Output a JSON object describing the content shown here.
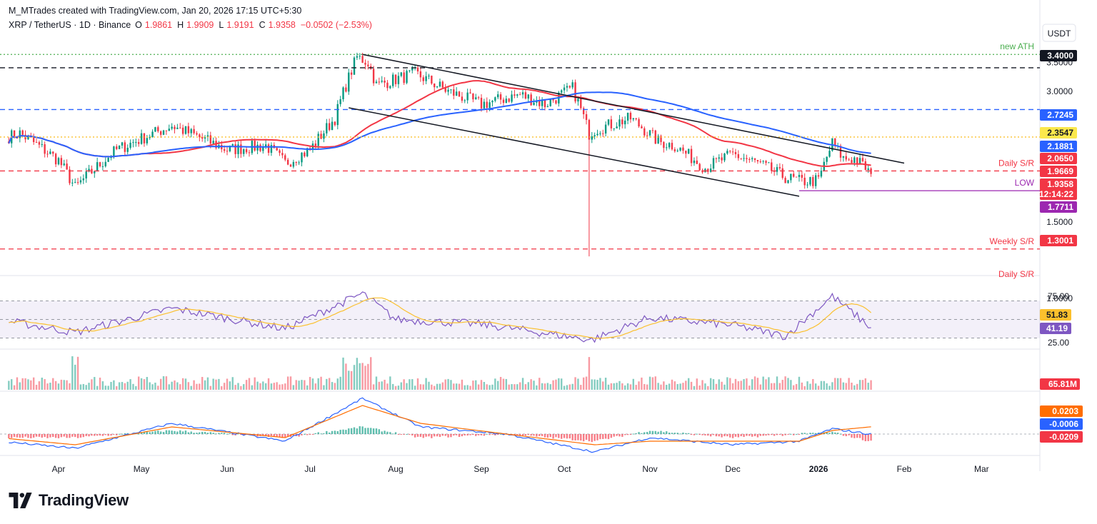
{
  "header": {
    "credit": "M_MTrades created with TradingView.com, Jan 20, 2026 17:15 UTC+5:30"
  },
  "symbol_line": {
    "symbol": "XRP / TetherUS · 1D · Binance",
    "open_label": "O",
    "open": "1.9861",
    "high_label": "H",
    "high": "1.9909",
    "low_label": "L",
    "low": "1.9191",
    "close_label": "C",
    "close": "1.9358",
    "change": "−0.0502 (−2.53%)"
  },
  "currency_button": "USDT",
  "brand": {
    "name": "TradingView"
  },
  "colors": {
    "up": "#089981",
    "down": "#f23645",
    "ma_red": "#f23645",
    "ma_blue": "#2962ff",
    "rsi_line": "#7e57c2",
    "rsi_ma": "#fbc02d",
    "macd_line": "#2962ff",
    "signal_line": "#ff6d00",
    "ath": "#4caf50",
    "low_line": "#9c27b0"
  },
  "chart_data": [
    {
      "type": "candlestick",
      "title": "XRP / TetherUS · 1D · Binance",
      "x_tick_labels": [
        "Apr",
        "May",
        "Jun",
        "Jul",
        "Aug",
        "Sep",
        "Oct",
        "Nov",
        "Dec",
        "2026",
        "Feb",
        "Mar"
      ],
      "y_tick_labels": [
        "3.5000",
        "3.0000",
        "1.5000",
        "1.0000"
      ],
      "y_scale": "log",
      "ylim": [
        0.95,
        3.75
      ],
      "ohlc_waypoints_x": [
        "Mar 10",
        "Mar 18",
        "Apr 1",
        "Apr 7",
        "Apr 22",
        "May 12",
        "Jun 1",
        "Jun 15",
        "Jun 22",
        "Jul 1",
        "Jul 10",
        "Jul 18",
        "Jul 22",
        "Jul 25",
        "Aug 8",
        "Aug 20",
        "Sep 1",
        "Sep 15",
        "Sep 24",
        "Oct 4",
        "Oct 10",
        "Oct 12",
        "Oct 25",
        "Nov 4",
        "Nov 10",
        "Nov 21",
        "Dec 1",
        "Dec 10",
        "Dec 20",
        "Dec 26",
        "Jan 1",
        "Jan 6",
        "Jan 10",
        "Jan 14",
        "Jan 18",
        "Jan 20"
      ],
      "close_waypoints": [
        2.32,
        2.4,
        2.08,
        1.8,
        2.2,
        2.5,
        2.2,
        2.25,
        2.05,
        2.2,
        2.6,
        3.6,
        3.5,
        3.1,
        3.3,
        3.0,
        2.8,
        2.95,
        2.8,
        3.05,
        2.4,
        2.45,
        2.6,
        2.3,
        2.25,
        2.0,
        2.15,
        2.05,
        1.9,
        1.86,
        1.87,
        2.28,
        2.1,
        2.1,
        2.0,
        1.9358
      ],
      "series": [
        {
          "name": "",
          "type": "moving-average",
          "color_key": "ma_red",
          "last_value": 2.065
        },
        {
          "name": "",
          "type": "moving-average",
          "color_key": "ma_blue",
          "last_value": 2.1881
        }
      ],
      "price_levels": [
        {
          "value": 3.4,
          "label": "3.4000",
          "style": "dashed",
          "color": "#131722",
          "text": ""
        },
        {
          "value": 3.65,
          "label": "",
          "style": "dotted",
          "color": "#4caf50",
          "text": "new ATH"
        },
        {
          "value": 2.7245,
          "label": "2.7245",
          "style": "dashed",
          "color": "#2962ff",
          "text": ""
        },
        {
          "value": 2.3547,
          "label": "2.3547",
          "style": "dotted",
          "color": "#fbc02d",
          "text": ""
        },
        {
          "value": 1.9669,
          "label": "1.9669",
          "style": "dashed",
          "color": "#f23645",
          "text": "Daily S/R"
        },
        {
          "value": 1.7711,
          "label": "1.7711",
          "style": "solid",
          "color": "#9c27b0",
          "text": "LOW"
        },
        {
          "value": 1.3001,
          "label": "1.3001",
          "style": "dashed",
          "color": "#f23645",
          "text": "Weekly S/R"
        }
      ],
      "channel": {
        "upper": [
          [
            "Jul 20",
            3.65
          ],
          [
            "Feb 1",
            2.05
          ]
        ],
        "lower": [
          [
            "Jul 15",
            2.75
          ],
          [
            "Dec 25",
            1.72
          ]
        ]
      },
      "price_labels": [
        {
          "text": "3.4000",
          "bg": "#131722",
          "fg": "#ffffff"
        },
        {
          "text": "2.7245",
          "bg": "#2962ff",
          "fg": "#ffffff"
        },
        {
          "text": "2.3547",
          "bg": "#fbe84c",
          "fg": "#131722"
        },
        {
          "text": "2.1881",
          "bg": "#2962ff",
          "fg": "#ffffff"
        },
        {
          "text": "2.0650",
          "bg": "#f23645",
          "fg": "#ffffff"
        },
        {
          "text": "1.9669",
          "bg": "#f23645",
          "fg": "#ffffff"
        },
        {
          "text": "1.9358",
          "bg": "#f23645",
          "fg": "#ffffff"
        },
        {
          "text": "12:14:22",
          "bg": "#f23645",
          "fg": "#ffffff"
        },
        {
          "text": "1.7711",
          "bg": "#9c27b0",
          "fg": "#ffffff"
        },
        {
          "text": "1.3001",
          "bg": "#f23645",
          "fg": "#ffffff"
        }
      ],
      "text_annotations": [
        "new ATH",
        "Daily S/R",
        "LOW",
        "Weekly S/R",
        "Daily S/R"
      ]
    },
    {
      "type": "line",
      "title": "",
      "y_tick_labels": [
        "75.00",
        "25.00"
      ],
      "ylim": [
        15,
        90
      ],
      "band": [
        30,
        70
      ],
      "x_waypoints": [
        "Mar 10",
        "Apr 7",
        "May 12",
        "Jun 22",
        "Jul 20",
        "Aug 1",
        "Sep 1",
        "Oct 11",
        "Nov 1",
        "Dec 1",
        "Dec 20",
        "Jan 6",
        "Jan 20"
      ],
      "series": [
        {
          "name": "",
          "role": "rsi",
          "values": [
            50,
            36,
            62,
            40,
            78,
            50,
            45,
            28,
            52,
            44,
            32,
            75,
            41.19
          ]
        },
        {
          "name": "",
          "role": "rsi-ma",
          "values": [
            48,
            44,
            54,
            46,
            70,
            55,
            48,
            38,
            46,
            45,
            38,
            60,
            51.83
          ]
        }
      ],
      "value_labels": [
        "51.83",
        "41.19"
      ]
    },
    {
      "type": "bar",
      "title": "",
      "series": [
        {
          "name": "",
          "role": "volume"
        }
      ],
      "last_value_label": "65.81M"
    },
    {
      "type": "line",
      "title": "",
      "x_waypoints": [
        "Mar 10",
        "Apr 7",
        "May 12",
        "Jun 22",
        "Jul 20",
        "Aug 10",
        "Sep 10",
        "Oct 12",
        "Nov 1",
        "Dec 1",
        "Dec 25",
        "Jan 6",
        "Jan 20"
      ],
      "series": [
        {
          "name": "",
          "role": "macd",
          "values": [
            -0.02,
            -0.04,
            0.03,
            -0.02,
            0.1,
            0.02,
            0.0,
            -0.05,
            -0.01,
            -0.03,
            -0.02,
            0.015,
            -0.0006
          ]
        },
        {
          "name": "",
          "role": "signal",
          "values": [
            -0.01,
            -0.03,
            0.02,
            -0.01,
            0.08,
            0.03,
            0.0,
            -0.03,
            -0.02,
            -0.02,
            -0.02,
            0.01,
            0.0203
          ]
        }
      ],
      "value_labels": [
        {
          "text": "0.0203",
          "bg": "#ff6d00"
        },
        {
          "text": "-0.0006",
          "bg": "#2962ff"
        },
        {
          "text": "-0.0209",
          "bg": "#f23645"
        }
      ]
    }
  ]
}
